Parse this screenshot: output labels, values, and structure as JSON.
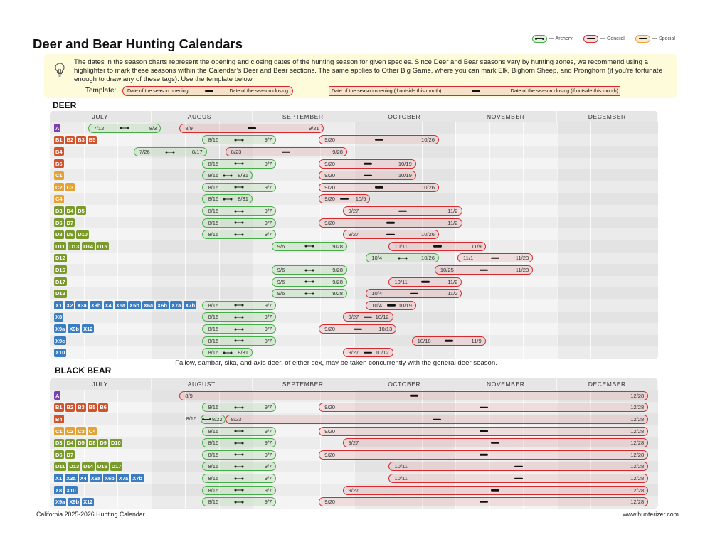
{
  "title": "Deer and Bear Hunting Calendars",
  "legend": [
    {
      "label": "— Archery",
      "type": "archery",
      "color": "#45ad45"
    },
    {
      "label": "— General",
      "type": "general",
      "color": "#d62a2e"
    },
    {
      "label": "— Special",
      "type": "special",
      "color": "#f0a030"
    }
  ],
  "info": {
    "icon": "lightbulb-icon",
    "text": "The dates in the season charts represent the opening and closing dates of the hunting season for given species. Since Deer and Bear seasons vary by hunting zones, we recommend using a highlighter to mark these seasons within the Calendar’s Deer and Bear sections. The same applies to Other Big Game, where you can mark Elk, Bighorn Sheep, and Pronghorn (if you're fortunate enough to draw any of these tags). Use the template below.",
    "template_label": "Template:",
    "template_open": "Date of the season opening",
    "template_close": "Date of the season closing",
    "template_open_outside": "Date of the season opening (if outside this month)",
    "template_close_outside": "Date of the season closing (if outside this month)"
  },
  "months": [
    "JULY",
    "AUGUST",
    "SEPTEMBER",
    "OCTOBER",
    "NOVEMBER",
    "DECEMBER"
  ],
  "badge_colors": {
    "A": "#7b3fb0",
    "B": "#d0532c",
    "C": "#e3a233",
    "D": "#7a9b2b",
    "X": "#3b7dc2"
  },
  "deer": {
    "heading": "DEER",
    "rows": [
      {
        "zones": [
          "A"
        ],
        "seasons": [
          [
            "archery",
            "7/12",
            "8/3"
          ],
          [
            "general",
            "8/9",
            "9/21"
          ]
        ]
      },
      {
        "zones": [
          "B1",
          "B2",
          "B3",
          "B5"
        ],
        "seasons": [
          [
            "archery",
            "8/16",
            "9/7"
          ],
          [
            "general",
            "9/20",
            "10/26"
          ]
        ]
      },
      {
        "zones": [
          "B4"
        ],
        "seasons": [
          [
            "archery",
            "7/26",
            "8/17"
          ],
          [
            "general",
            "8/23",
            "9/28"
          ]
        ]
      },
      {
        "zones": [
          "B6"
        ],
        "seasons": [
          [
            "archery",
            "8/16",
            "9/7"
          ],
          [
            "general",
            "9/20",
            "10/19"
          ]
        ]
      },
      {
        "zones": [
          "C1"
        ],
        "seasons": [
          [
            "archery",
            "8/16",
            "8/31"
          ],
          [
            "general",
            "9/20",
            "10/19"
          ]
        ]
      },
      {
        "zones": [
          "C2",
          "C3"
        ],
        "seasons": [
          [
            "archery",
            "8/16",
            "9/7"
          ],
          [
            "general",
            "9/20",
            "10/26"
          ]
        ]
      },
      {
        "zones": [
          "C4"
        ],
        "seasons": [
          [
            "archery",
            "8/16",
            "8/31"
          ],
          [
            "general",
            "9/20",
            "10/5"
          ]
        ]
      },
      {
        "zones": [
          "D3",
          "D4",
          "D5"
        ],
        "seasons": [
          [
            "archery",
            "8/16",
            "9/7"
          ],
          [
            "general",
            "9/27",
            "11/2"
          ]
        ]
      },
      {
        "zones": [
          "D6",
          "D7"
        ],
        "seasons": [
          [
            "archery",
            "8/16",
            "9/7"
          ],
          [
            "general",
            "9/20",
            "11/2"
          ]
        ]
      },
      {
        "zones": [
          "D8",
          "D9",
          "D10"
        ],
        "seasons": [
          [
            "archery",
            "8/16",
            "9/7"
          ],
          [
            "general",
            "9/27",
            "10/26"
          ]
        ]
      },
      {
        "zones": [
          "D11",
          "D13",
          "D14",
          "D15"
        ],
        "seasons": [
          [
            "archery",
            "9/6",
            "9/28"
          ],
          [
            "general",
            "10/11",
            "11/9"
          ]
        ]
      },
      {
        "zones": [
          "D12"
        ],
        "seasons": [
          [
            "archery",
            "10/4",
            "10/26"
          ],
          [
            "general",
            "11/1",
            "11/23"
          ]
        ]
      },
      {
        "zones": [
          "D16"
        ],
        "seasons": [
          [
            "archery",
            "9/6",
            "9/28"
          ],
          [
            "general",
            "10/25",
            "11/23"
          ]
        ]
      },
      {
        "zones": [
          "D17"
        ],
        "seasons": [
          [
            "archery",
            "9/6",
            "9/28"
          ],
          [
            "general",
            "10/11",
            "11/2"
          ]
        ]
      },
      {
        "zones": [
          "D19"
        ],
        "seasons": [
          [
            "archery",
            "9/6",
            "9/28"
          ],
          [
            "general",
            "10/4",
            "11/2"
          ]
        ]
      },
      {
        "zones": [
          "X1",
          "X2",
          "X3a",
          "X3b",
          "X4",
          "X5a",
          "X5b",
          "X6a",
          "X6b",
          "X7a",
          "X7b"
        ],
        "seasons": [
          [
            "archery",
            "8/16",
            "9/7"
          ],
          [
            "general",
            "10/4",
            "10/19"
          ]
        ]
      },
      {
        "zones": [
          "X8"
        ],
        "seasons": [
          [
            "archery",
            "8/16",
            "9/7"
          ],
          [
            "general",
            "9/27",
            "10/12"
          ]
        ]
      },
      {
        "zones": [
          "X9a",
          "X9b",
          "X12"
        ],
        "seasons": [
          [
            "archery",
            "8/16",
            "9/7"
          ],
          [
            "general",
            "9/20",
            "10/13"
          ]
        ]
      },
      {
        "zones": [
          "X9c"
        ],
        "seasons": [
          [
            "archery",
            "8/16",
            "9/7"
          ],
          [
            "general",
            "10/18",
            "11/9"
          ]
        ]
      },
      {
        "zones": [
          "X10"
        ],
        "seasons": [
          [
            "archery",
            "8/16",
            "8/31"
          ],
          [
            "general",
            "9/27",
            "10/12"
          ]
        ]
      }
    ],
    "note": "Fallow, sambar, sika, and axis deer, of either sex, may be taken concurrently with the general deer season."
  },
  "bear": {
    "heading": "BLACK BEAR",
    "rows": [
      {
        "zones": [
          "A"
        ],
        "seasons": [
          [
            "general",
            "8/9",
            "12/28"
          ]
        ]
      },
      {
        "zones": [
          "B1",
          "B2",
          "B3",
          "B5",
          "B6"
        ],
        "seasons": [
          [
            "archery",
            "8/16",
            "9/7"
          ],
          [
            "general",
            "9/20",
            "12/28"
          ]
        ]
      },
      {
        "zones": [
          "B4"
        ],
        "seasons": [
          [
            "archery",
            "8/16",
            "8/22",
            "outside"
          ],
          [
            "general",
            "8/23",
            "12/28"
          ]
        ]
      },
      {
        "zones": [
          "C1",
          "C2",
          "C3",
          "C4"
        ],
        "seasons": [
          [
            "archery",
            "8/16",
            "9/7"
          ],
          [
            "general",
            "9/20",
            "12/28"
          ]
        ]
      },
      {
        "zones": [
          "D3",
          "D4",
          "D5",
          "D8",
          "D9",
          "D10"
        ],
        "seasons": [
          [
            "archery",
            "8/16",
            "9/7"
          ],
          [
            "general",
            "9/27",
            "12/28"
          ]
        ]
      },
      {
        "zones": [
          "D6",
          "D7"
        ],
        "seasons": [
          [
            "archery",
            "8/16",
            "9/7"
          ],
          [
            "general",
            "9/20",
            "12/28"
          ]
        ]
      },
      {
        "zones": [
          "D11",
          "D13",
          "D14",
          "D15",
          "D17"
        ],
        "seasons": [
          [
            "archery",
            "8/16",
            "9/7"
          ],
          [
            "general",
            "10/11",
            "12/28"
          ]
        ]
      },
      {
        "zones": [
          "X1",
          "X3a",
          "X4",
          "X6a",
          "X6b",
          "X7a",
          "X7b"
        ],
        "seasons": [
          [
            "archery",
            "8/16",
            "9/7"
          ],
          [
            "general",
            "10/11",
            "12/28"
          ]
        ]
      },
      {
        "zones": [
          "X8",
          "X10"
        ],
        "seasons": [
          [
            "archery",
            "8/16",
            "9/7"
          ],
          [
            "general",
            "9/27",
            "12/28"
          ]
        ]
      },
      {
        "zones": [
          "X9a",
          "X9b",
          "X12"
        ],
        "seasons": [
          [
            "archery",
            "8/16",
            "9/7"
          ],
          [
            "general",
            "9/20",
            "12/28"
          ]
        ]
      }
    ]
  },
  "footer": {
    "left": "California 2025-2026 Hunting Calendar",
    "right": "www.hunterizer.com"
  }
}
